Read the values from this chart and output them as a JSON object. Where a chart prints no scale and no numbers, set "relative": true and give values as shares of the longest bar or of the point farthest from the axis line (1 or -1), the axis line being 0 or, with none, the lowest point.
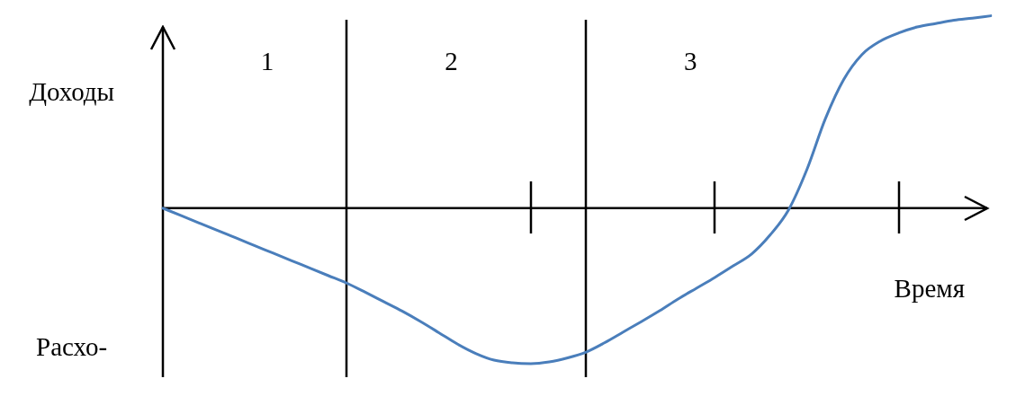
{
  "chart_data": {
    "type": "line",
    "relative": true,
    "xlabel": "Время",
    "ylabel": "Доходы",
    "categories": [
      null,
      null,
      null,
      null,
      null,
      null,
      null,
      null,
      null,
      null,
      null,
      null,
      null,
      null,
      null,
      null,
      null,
      null,
      null,
      null,
      null,
      null,
      null,
      null,
      null,
      null,
      null,
      null,
      null,
      null,
      null,
      null,
      null,
      null,
      null,
      null,
      null,
      null,
      null,
      null,
      null,
      null,
      null,
      null,
      null,
      null
    ],
    "series": [
      {
        "color": "#4a7ebb",
        "values": [
          0,
          -0.039,
          -0.078,
          -0.117,
          -0.156,
          -0.195,
          -0.234,
          -0.273,
          -0.312,
          -0.351,
          -0.39,
          -0.437,
          -0.486,
          -0.535,
          -0.589,
          -0.647,
          -0.706,
          -0.755,
          -0.79,
          -0.804,
          -0.808,
          -0.799,
          -0.778,
          -0.748,
          -0.7,
          -0.645,
          -0.59,
          -0.533,
          -0.472,
          -0.416,
          -0.36,
          -0.3,
          -0.238,
          -0.14,
          -0.01,
          0.2,
          0.463,
          0.668,
          0.799,
          0.869,
          0.911,
          0.942,
          0.96,
          0.977,
          0.988,
          1.0
        ]
      }
    ],
    "annotations": [
      "1",
      "2",
      "3",
      "Расхо-"
    ]
  }
}
